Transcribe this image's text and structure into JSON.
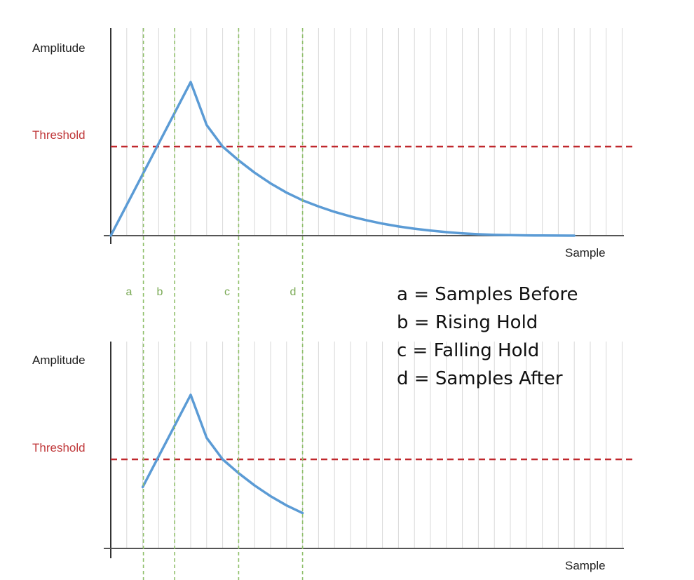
{
  "legend": [
    {
      "key": "a",
      "text": "a = Samples Before"
    },
    {
      "key": "b",
      "text": "b = Rising Hold"
    },
    {
      "key": "c",
      "text": "c = Falling Hold"
    },
    {
      "key": "d",
      "text": "d = Samples After"
    }
  ],
  "colors": {
    "signal": "#5b9bd5",
    "threshold": "#c0282d",
    "threshold_label": "#c0393b",
    "marker": "#8fbf6a",
    "marker_label": "#7aaa55",
    "grid": "#d9d9d9",
    "axis": "#333333"
  },
  "chart_data": [
    {
      "type": "line",
      "name": "full",
      "ylabel": "Amplitude",
      "xlabel": "Sample",
      "threshold_label": "Threshold",
      "threshold": 0.58,
      "xlim": [
        0,
        32
      ],
      "ylim": [
        0,
        1
      ],
      "peak": 5,
      "x": [
        0,
        1,
        2,
        3,
        4,
        5,
        6,
        7,
        8,
        9,
        10,
        11,
        12,
        13,
        14,
        15,
        16,
        17,
        18,
        19,
        20,
        21,
        22,
        23,
        24,
        25,
        26,
        27,
        28,
        29
      ],
      "values": [
        0,
        0.2,
        0.4,
        0.6,
        0.8,
        1.0,
        0.72,
        0.58,
        0.49,
        0.41,
        0.34,
        0.28,
        0.23,
        0.19,
        0.155,
        0.125,
        0.1,
        0.078,
        0.06,
        0.045,
        0.033,
        0.023,
        0.015,
        0.009,
        0.005,
        0.003,
        0.002,
        0.001,
        0.0005,
        0
      ],
      "markers": [
        {
          "label": "a",
          "x": 2
        },
        {
          "label": "b",
          "x": 4
        },
        {
          "label": "c",
          "x": 8
        },
        {
          "label": "d",
          "x": 12
        }
      ]
    },
    {
      "type": "line",
      "name": "captured",
      "ylabel": "Amplitude",
      "xlabel": "Sample",
      "threshold_label": "Threshold",
      "threshold": 0.58,
      "xlim": [
        0,
        32
      ],
      "ylim": [
        0,
        1
      ],
      "peak": 5,
      "x": [
        2,
        3,
        4,
        5,
        6,
        7,
        8,
        9,
        10,
        11,
        12
      ],
      "values": [
        0.4,
        0.6,
        0.8,
        1.0,
        0.72,
        0.58,
        0.49,
        0.41,
        0.34,
        0.28,
        0.23
      ],
      "markers": [
        {
          "label": "",
          "x": 2
        },
        {
          "label": "",
          "x": 4
        },
        {
          "label": "",
          "x": 8
        },
        {
          "label": "",
          "x": 12
        }
      ]
    }
  ]
}
